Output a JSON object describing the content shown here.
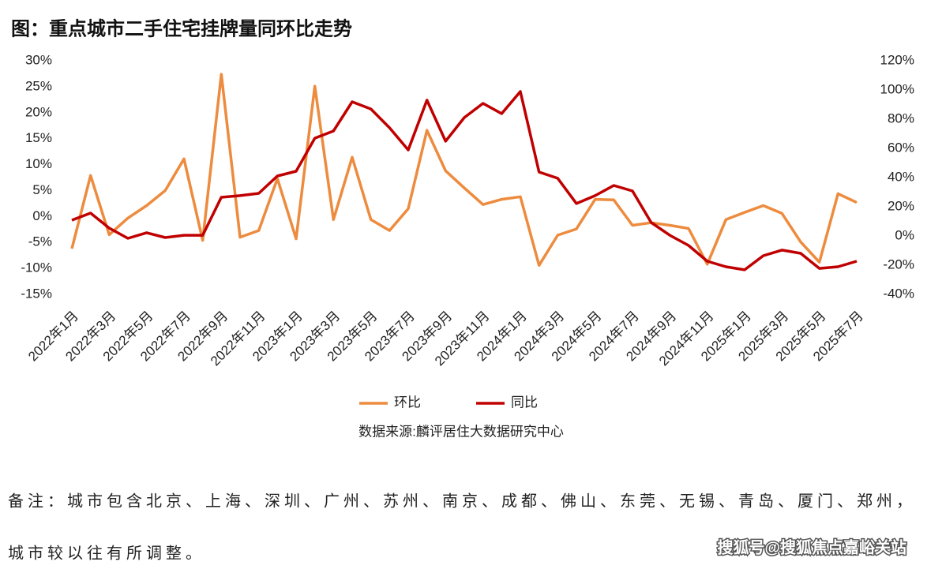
{
  "chart_data": {
    "type": "line",
    "title": "图：重点城市二手住宅挂牌量同环比走势",
    "categories": [
      "2022年1月",
      null,
      "2022年3月",
      null,
      "2022年5月",
      null,
      "2022年7月",
      null,
      "2022年9月",
      null,
      "2022年11月",
      null,
      "2023年1月",
      null,
      "2023年3月",
      null,
      "2023年5月",
      null,
      "2023年7月",
      null,
      "2023年9月",
      null,
      "2023年11月",
      null,
      "2024年1月",
      null,
      "2024年3月",
      null,
      "2024年5月",
      null,
      "2024年7月",
      null,
      "2024年9月",
      null,
      "2024年11月",
      null,
      "2025年1月",
      null,
      "2025年3月",
      null,
      "2025年5月",
      null,
      "2025年7月"
    ],
    "series": [
      {
        "name": "环比",
        "color": "#ed8b3e",
        "axis": "y",
        "values": [
          -6.2,
          7.9,
          -3.5,
          -0.3,
          2.1,
          5.0,
          11.1,
          -4.6,
          27.4,
          -4.0,
          -2.7,
          7.3,
          -4.3,
          25.1,
          -0.6,
          11.4,
          -0.6,
          -2.7,
          1.5,
          16.6,
          8.8,
          5.5,
          2.3,
          3.3,
          3.8,
          -9.4,
          -3.6,
          -2.4,
          3.3,
          3.2,
          -1.7,
          -1.2,
          -1.7,
          -2.3,
          -9.2,
          -0.6,
          0.8,
          2.1,
          0.6,
          -4.9,
          -8.8,
          4.4,
          2.7
        ]
      },
      {
        "name": "同比",
        "color": "#c00000",
        "axis": "y2",
        "values": [
          10.8,
          15.7,
          5.4,
          -1.6,
          2.2,
          -1.1,
          0.5,
          0.5,
          26.5,
          27.6,
          29.2,
          41.1,
          44.3,
          67.0,
          71.9,
          91.9,
          87.0,
          74.1,
          58.9,
          93.0,
          64.9,
          81.1,
          90.8,
          83.8,
          98.9,
          43.8,
          39.5,
          22.2,
          27.6,
          34.6,
          30.8,
          9.2,
          0.5,
          -6.5,
          -17.3,
          -21.1,
          -23.2,
          -13.5,
          -9.7,
          -11.9,
          -22.2,
          -21.1,
          -17.3
        ]
      }
    ],
    "ylim": [
      -15,
      30
    ],
    "yticks": [
      {
        "value": -15,
        "label": "-15%"
      },
      {
        "value": -10,
        "label": "-10%"
      },
      {
        "value": -5,
        "label": "-5%"
      },
      {
        "value": 0,
        "label": "0%"
      },
      {
        "value": 5,
        "label": "5%"
      },
      {
        "value": 10,
        "label": "10%"
      },
      {
        "value": 15,
        "label": "15%"
      },
      {
        "value": 20,
        "label": "20%"
      },
      {
        "value": 25,
        "label": "25%"
      },
      {
        "value": 30,
        "label": "30%"
      }
    ],
    "y2lim": [
      -40,
      120
    ],
    "y2ticks": [
      {
        "value": -40,
        "label": "-40%"
      },
      {
        "value": -20,
        "label": "-20%"
      },
      {
        "value": 0,
        "label": "0%"
      },
      {
        "value": 20,
        "label": "20%"
      },
      {
        "value": 40,
        "label": "40%"
      },
      {
        "value": 60,
        "label": "60%"
      },
      {
        "value": 80,
        "label": "80%"
      },
      {
        "value": 100,
        "label": "100%"
      },
      {
        "value": 120,
        "label": "120%"
      }
    ],
    "legend": "bottom",
    "source": "数据来源:麟评居住大数据研究中心"
  },
  "note": [
    "备注：城市包含北京、上海、深圳、广州、苏州、南京、成都、佛山、东莞、无锡、青岛、厦门、郑州，",
    "城市较以往有所调整。"
  ],
  "watermark": "搜狐号@搜狐焦点嘉峪关站"
}
